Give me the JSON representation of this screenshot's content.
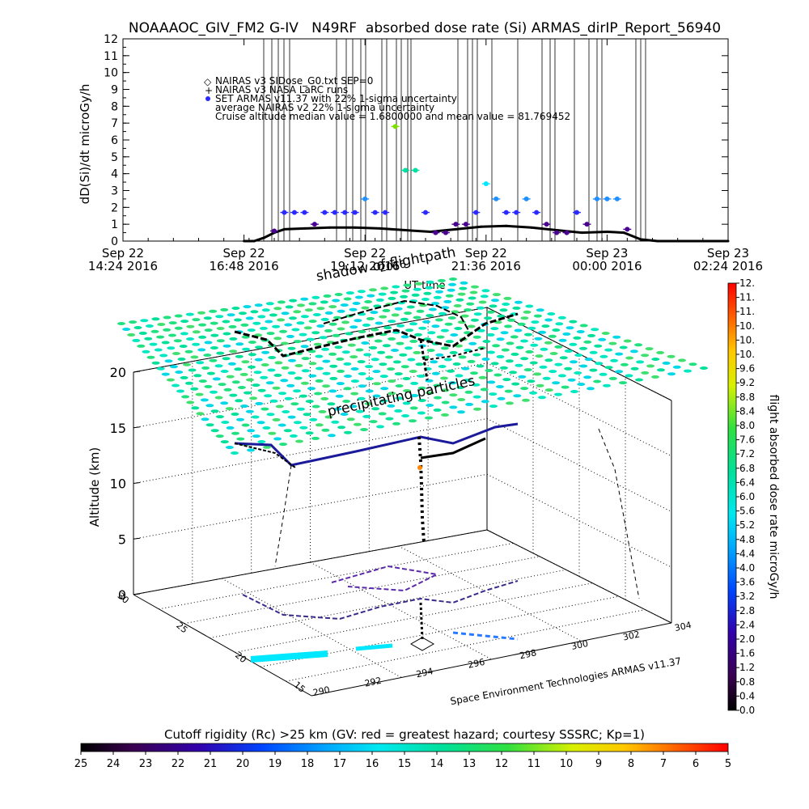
{
  "figure": {
    "title": "NOAAAOC_GIV_FM2 G-IV   N49RF  absorbed dose rate (Si) ARMAS_dirIP_Report_56940",
    "credit": "Space Environment Technologies ARMAS v11.37"
  },
  "legend": {
    "line1": "NAIRAS v3 SIDose_G0.txt SEP=0",
    "line2": "NAIRAS v3 NASA LaRC runs",
    "line3": "SET ARMAS v11.37 with 22% 1-sigma uncertainty",
    "line4": "average NAIRAS v2 22% 1-sigma uncertainty",
    "line5": "Cruise altitude median value = 1.6800000 and mean value = 81.769452"
  },
  "annotations": {
    "shadow": "shadow of flightpath",
    "shadow_date": "2016",
    "precip": "precipitating particles"
  },
  "colors": {
    "dose_marker": "#2a2aff",
    "nairas_line": "#000000",
    "green": "#00e07a",
    "cyan": "#00e8ff"
  },
  "chart_data": [
    {
      "type": "scatter",
      "title": "NOAAAOC_GIV_FM2 G-IV   N49RF  absorbed dose rate (Si) ARMAS_dirIP_Report_56940",
      "xlabel": "UT time",
      "ylabel": "dD(Si)/dt microGy/h",
      "ylim": [
        0,
        12
      ],
      "yticks": [
        0,
        1,
        2,
        3,
        4,
        5,
        6,
        7,
        8,
        9,
        10,
        11,
        12
      ],
      "xticks": [
        {
          "line1": "Sep 22",
          "line2": "14:24 2016"
        },
        {
          "line1": "Sep 22",
          "line2": "16:48 2016"
        },
        {
          "line1": "Sep 22",
          "line2": "19:12 2016"
        },
        {
          "line1": "Sep 22",
          "line2": "21:36 2016"
        },
        {
          "line1": "Sep 23",
          "line2": "00:00 2016"
        },
        {
          "line1": "Sep 23",
          "line2": "02:24 2016"
        }
      ],
      "series": [
        {
          "name": "SET ARMAS v11.37 with 22% 1-sigma uncertainty",
          "x": [
            "17:24",
            "17:36",
            "17:48",
            "18:00",
            "18:12",
            "18:24",
            "18:36",
            "18:48",
            "19:00",
            "19:12",
            "19:24",
            "19:36",
            "19:48",
            "20:00",
            "20:12",
            "20:24",
            "20:36",
            "20:48",
            "21:00",
            "21:12",
            "21:24",
            "21:36",
            "21:48",
            "22:00",
            "22:12",
            "22:24",
            "22:36",
            "22:48",
            "23:00",
            "23:12",
            "23:24",
            "23:36",
            "23:48",
            "00:00",
            "00:12",
            "00:24"
          ],
          "y": [
            0.6,
            1.7,
            1.7,
            1.7,
            1.0,
            1.7,
            1.7,
            1.7,
            1.7,
            2.5,
            1.7,
            1.7,
            6.8,
            4.2,
            4.2,
            1.7,
            0.5,
            0.5,
            1.0,
            1.0,
            1.7,
            3.4,
            2.5,
            1.7,
            1.7,
            2.5,
            1.7,
            1.0,
            0.5,
            0.5,
            1.7,
            1.0,
            2.5,
            2.5,
            2.5,
            0.7
          ]
        },
        {
          "name": "average NAIRAS v2 22% 1-sigma uncertainty",
          "x": [
            "16:48",
            "17:00",
            "17:12",
            "17:24",
            "17:36",
            "18:00",
            "18:30",
            "19:00",
            "19:30",
            "20:00",
            "20:30",
            "21:00",
            "21:30",
            "22:00",
            "22:30",
            "23:00",
            "23:30",
            "00:00",
            "00:20",
            "00:40",
            "01:00",
            "02:24"
          ],
          "y": [
            0,
            0,
            0.2,
            0.5,
            0.7,
            0.75,
            0.8,
            0.8,
            0.75,
            0.65,
            0.55,
            0.7,
            0.85,
            0.9,
            0.8,
            0.65,
            0.5,
            0.55,
            0.5,
            0.1,
            0,
            0
          ]
        }
      ]
    },
    {
      "type": "scatter",
      "title": "",
      "xlabel": "",
      "ylabel": "Altitude (km)",
      "zticks": [
        0,
        5,
        10,
        15,
        20
      ],
      "lon_ticks": [
        290,
        292,
        294,
        296,
        298,
        300,
        302,
        304
      ],
      "lat_ticks": [
        15,
        20,
        25,
        30
      ],
      "colorbar": {
        "label": "flight absorbed dose rate microGy/h",
        "ticks": [
          "0.0",
          "0.4",
          "0.8",
          "1.2",
          "1.6",
          "2.0",
          "2.4",
          "2.8",
          "3.2",
          "3.6",
          "4.0",
          "4.4",
          "4.8",
          "5.2",
          "5.6",
          "6.0",
          "6.4",
          "6.8",
          "7.2",
          "7.6",
          "8.0",
          "8.4",
          "8.8",
          "9.2",
          "9.6",
          "10.",
          "10.",
          "10.",
          "11.",
          "11.",
          "12."
        ]
      },
      "rigidity_bar": {
        "label": "Cutoff rigidity (Rc) >25 km (GV: red = greatest hazard; courtesy SSSRC; Kp=1)",
        "ticks": [
          "25",
          "24",
          "23",
          "22",
          "21",
          "20",
          "19",
          "18",
          "17",
          "16",
          "15",
          "14",
          "13",
          "12",
          "11",
          "10",
          "9",
          "8",
          "7",
          "6",
          "5"
        ]
      }
    }
  ]
}
